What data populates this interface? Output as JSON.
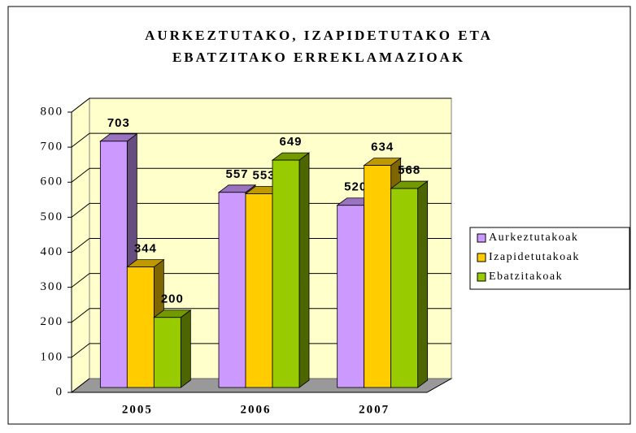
{
  "chart_data": {
    "type": "bar",
    "title": [
      "AURKEZTUTAKO, IZAPIDETUTAKO ETA",
      "EBATZITAKO ERREKLAMAZIOAK"
    ],
    "categories": [
      "2005",
      "2006",
      "2007"
    ],
    "series": [
      {
        "name": "Aurkeztutakoak",
        "color": "#cc99ff",
        "values": [
          703,
          557,
          520
        ]
      },
      {
        "name": "Izapidetutakoak",
        "color": "#ffcc00",
        "values": [
          344,
          553,
          634
        ]
      },
      {
        "name": "Ebatzitakoak",
        "color": "#99cc00",
        "values": [
          200,
          649,
          568
        ]
      }
    ],
    "ylim": [
      0,
      800
    ],
    "yticks": [
      0,
      100,
      200,
      300,
      400,
      500,
      600,
      700,
      800
    ],
    "grid": true,
    "legend": "right"
  }
}
